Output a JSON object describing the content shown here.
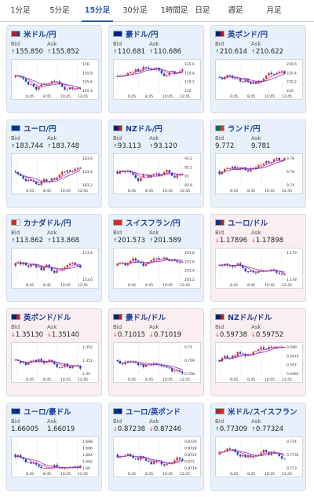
{
  "tabs": [
    "1分足",
    "5分足",
    "15分足",
    "30分足",
    "1時間足",
    "日足",
    "週足",
    "月足"
  ],
  "active_tab": 2,
  "labels": {
    "bid": "Bid",
    "ask": "Ask"
  },
  "cards": [
    {
      "pair": "米ドル/円",
      "bid": "155.850",
      "ask": "155.852",
      "dir": "up",
      "bg": "blue",
      "flag": [
        "#b22234",
        "#3c3b6e"
      ],
      "yticks": [
        "156",
        "155.8",
        "155.6",
        "155.4"
      ]
    },
    {
      "pair": "豪ドル/円",
      "bid": "110.681",
      "ask": "110.686",
      "dir": "up",
      "bg": "blue",
      "flag": [
        "#00247d",
        "#00247d"
      ],
      "yticks": [
        "110.6",
        "110.4",
        "110.2",
        "110"
      ]
    },
    {
      "pair": "英ポンド/円",
      "bid": "210.614",
      "ask": "210.622",
      "dir": "up",
      "bg": "blue",
      "flag": [
        "#012169",
        "#c8102e"
      ],
      "yticks": [
        "210.6",
        "210.4",
        "210.2",
        "210"
      ]
    },
    {
      "pair": "ユーロ/円",
      "bid": "183.744",
      "ask": "183.748",
      "dir": "up",
      "bg": "blue",
      "flag": [
        "#003399",
        "#003399"
      ],
      "yticks": [
        "183.6",
        "183.4",
        "183.2"
      ]
    },
    {
      "pair": "NZドル/円",
      "bid": "93.113",
      "ask": "93.120",
      "dir": "up",
      "bg": "blue",
      "flag": [
        "#00247d",
        "#cc142b"
      ],
      "yticks": [
        "93.2",
        "93.1",
        "93",
        "92.9"
      ]
    },
    {
      "pair": "ランド/円",
      "bid": "9.772",
      "ask": "9.781",
      "dir": "none",
      "bg": "blue",
      "flag": [
        "#007749",
        "#de3831"
      ],
      "yticks": [
        "9.78",
        "9.76",
        "9.74"
      ]
    },
    {
      "pair": "カナダドル/円",
      "bid": "113.862",
      "ask": "113.868",
      "dir": "up",
      "bg": "blue",
      "flag": [
        "#d52b1e",
        "#ffffff"
      ],
      "yticks": [
        "113.8",
        "113.6"
      ]
    },
    {
      "pair": "スイスフラン/円",
      "bid": "201.573",
      "ask": "201.589",
      "dir": "up",
      "bg": "blue",
      "flag": [
        "#d52b1e",
        "#d52b1e"
      ],
      "yticks": [
        "201.8",
        "201.6",
        "201.4",
        "201.2"
      ]
    },
    {
      "pair": "ユーロ/ドル",
      "bid": "1.17896",
      "ask": "1.17898",
      "dir": "down",
      "bg": "red",
      "flag": [
        "#003399",
        "#b22234"
      ],
      "yticks": [
        "1.179",
        "1.178"
      ]
    },
    {
      "pair": "英ポンド/ドル",
      "bid": "1.35130",
      "ask": "1.35140",
      "dir": "down",
      "bg": "red",
      "flag": [
        "#012169",
        "#b22234"
      ],
      "yticks": [
        "1.352",
        "1.351",
        "1.35"
      ]
    },
    {
      "pair": "豪ドル/ドル",
      "bid": "0.71015",
      "ask": "0.71019",
      "dir": "down",
      "bg": "red",
      "flag": [
        "#00247d",
        "#b22234"
      ],
      "yticks": [
        "0.71",
        "0.709",
        "0.708"
      ]
    },
    {
      "pair": "NZドル/ドル",
      "bid": "0.59738",
      "ask": "0.59752",
      "dir": "down",
      "bg": "red",
      "flag": [
        "#00247d",
        "#b22234"
      ],
      "yticks": [
        "0.598",
        "0.5975",
        "0.597",
        "0.5965"
      ]
    },
    {
      "pair": "ユーロ/豪ドル",
      "bid": "1.66005",
      "ask": "1.66019",
      "dir": "none",
      "bg": "blue",
      "flag": [
        "#003399",
        "#00247d"
      ],
      "yticks": [
        "1.668",
        "1.666",
        "1.664",
        "1.662",
        "1.66"
      ]
    },
    {
      "pair": "ユーロ/英ポンド",
      "bid": "0.87238",
      "ask": "0.87246",
      "dir": "down",
      "bg": "blue",
      "flag": [
        "#003399",
        "#012169"
      ],
      "yticks": [
        "0.8726",
        "0.8724",
        "0.8722",
        "0.872",
        "0.8718"
      ]
    },
    {
      "pair": "米ドル/スイスフラン",
      "bid": "0.77309",
      "ask": "0.77324",
      "dir": "up",
      "bg": "blue",
      "flag": [
        "#b22234",
        "#d52b1e"
      ],
      "yticks": [
        "0.774",
        "0.7735",
        "0.773"
      ]
    }
  ],
  "xticks": [
    "6:45",
    "8:45",
    "10:45",
    "12:45"
  ],
  "colors": {
    "up_candle": "#d0312d",
    "down_candle": "#1f3fb4",
    "ma1": "#d43fd0",
    "ma2": "#7b3fb0"
  }
}
